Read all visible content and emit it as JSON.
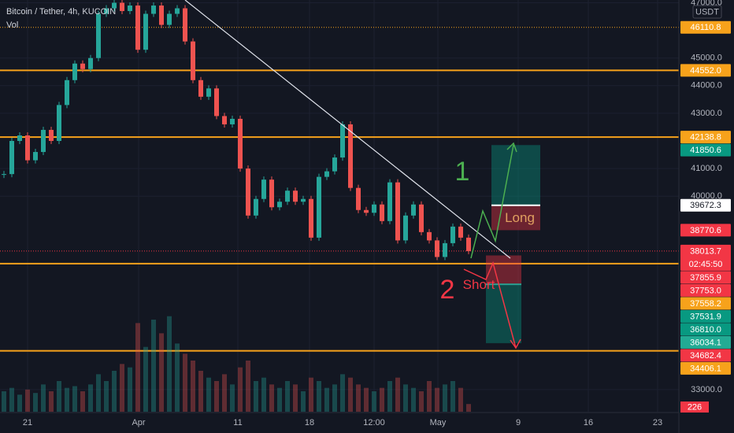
{
  "header": {
    "symbol": "Bitcoin / Tether, 4h, KUCOIN",
    "volume": "Vol",
    "currency": "USDT"
  },
  "chart_data": {
    "type": "candlestick",
    "ylim": [
      32200,
      47100
    ],
    "yticks": [
      {
        "value": 47000,
        "label": "47000.0"
      },
      {
        "value": 45000,
        "label": "45000.0"
      },
      {
        "value": 44000,
        "label": "44000.0"
      },
      {
        "value": 43000,
        "label": "43000.0"
      },
      {
        "value": 41000,
        "label": "41000.0"
      },
      {
        "value": 40000,
        "label": "40000.0"
      },
      {
        "value": 33000,
        "label": "33000.0"
      }
    ],
    "x_labels": [
      "21",
      "Apr",
      "11",
      "18",
      "12:00",
      "May",
      "9",
      "16",
      "23"
    ],
    "closes": [
      40800,
      42000,
      42200,
      41300,
      41600,
      42400,
      42000,
      43300,
      44200,
      44800,
      44600,
      45000,
      46600,
      46800,
      47000,
      46700,
      46900,
      45300,
      46600,
      46900,
      46200,
      46600,
      46800,
      45600,
      44200,
      43600,
      43900,
      42900,
      42600,
      42800,
      41000,
      39300,
      39900,
      40600,
      39600,
      39800,
      40200,
      39800,
      39900,
      38500,
      40700,
      40900,
      41400,
      42600,
      40300,
      39500,
      39400,
      39700,
      39100,
      40500,
      38400,
      39300,
      39700,
      38700,
      38400,
      37800,
      38300,
      38900,
      38500,
      38013.7
    ],
    "volume": [
      600,
      700,
      500,
      650,
      550,
      800,
      600,
      900,
      700,
      750,
      600,
      800,
      1100,
      900,
      1200,
      1400,
      1300,
      2600,
      1900,
      2700,
      2300,
      2800,
      2000,
      1700,
      1500,
      1200,
      1000,
      900,
      1100,
      800,
      1300,
      1500,
      900,
      1000,
      800,
      700,
      900,
      800,
      600,
      1000,
      900,
      700,
      800,
      1100,
      1000,
      800,
      700,
      600,
      700,
      900,
      1000,
      800,
      700,
      600,
      900,
      700,
      800,
      900,
      700,
      226
    ],
    "vlim": [
      0,
      3000
    ],
    "volume_tag": "226",
    "price_tags": [
      {
        "value": 46110.8,
        "label": "46110.8",
        "color": "#f7a21b",
        "line": "dotted"
      },
      {
        "value": 44552.0,
        "label": "44552.0",
        "color": "#f7a21b",
        "line": "solid"
      },
      {
        "value": 42138.8,
        "label": "42138.8",
        "color": "#f7a21b",
        "line": "solid"
      },
      {
        "value": 41850.6,
        "label": "41850.6",
        "color": "#089981"
      },
      {
        "value": 39672.3,
        "label": "39672.3",
        "color": "#ffffff"
      },
      {
        "value": 38770.6,
        "label": "38770.6",
        "color": "#f23645"
      },
      {
        "value": 38013.7,
        "label": "38013.7",
        "color": "#f23645",
        "line": "reddot",
        "countdown": "02:45:50"
      },
      {
        "value": 37855.9,
        "label": "37855.9",
        "color": "#f23645"
      },
      {
        "value": 37753.0,
        "label": "37753.0",
        "color": "#f23645"
      },
      {
        "value": 37558.2,
        "label": "37558.2",
        "color": "#f7a21b",
        "line": "solid"
      },
      {
        "value": 37531.9,
        "label": "37531.9",
        "color": "#089981"
      },
      {
        "value": 36810.0,
        "label": "36810.0",
        "color": "#089981"
      },
      {
        "value": 36034.1,
        "label": "36034.1",
        "color": "#22ab94"
      },
      {
        "value": 34682.4,
        "label": "34682.4",
        "color": "#f23645"
      },
      {
        "value": 34406.1,
        "label": "34406.1",
        "color": "#f7a21b",
        "line": "solid"
      }
    ],
    "annotations": {
      "one": "1",
      "two": "2",
      "long": "Long",
      "short": "Short"
    }
  }
}
